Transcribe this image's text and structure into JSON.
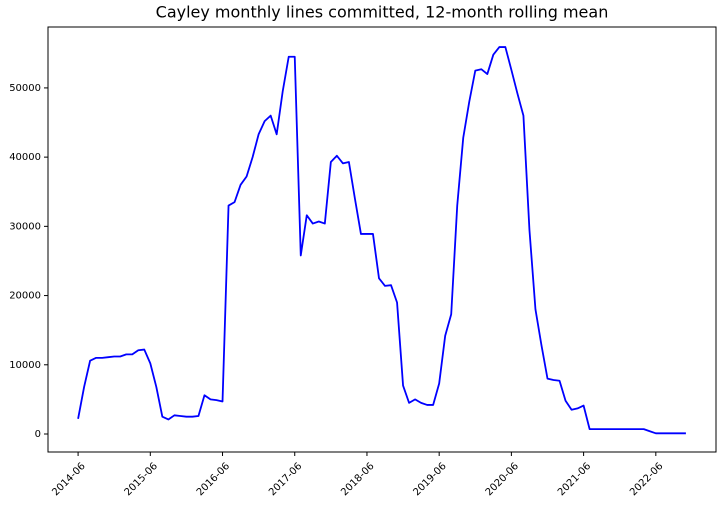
{
  "chart_data": {
    "type": "line",
    "title": "Cayley monthly lines committed, 12-month rolling mean",
    "x": [
      "2014-06",
      "2014-07",
      "2014-08",
      "2014-09",
      "2014-10",
      "2014-11",
      "2014-12",
      "2015-01",
      "2015-02",
      "2015-03",
      "2015-04",
      "2015-05",
      "2015-06",
      "2015-07",
      "2015-08",
      "2015-09",
      "2015-10",
      "2015-11",
      "2015-12",
      "2016-01",
      "2016-02",
      "2016-03",
      "2016-04",
      "2016-05",
      "2016-06",
      "2016-07",
      "2016-08",
      "2016-09",
      "2016-10",
      "2016-11",
      "2016-12",
      "2017-01",
      "2017-02",
      "2017-03",
      "2017-04",
      "2017-05",
      "2017-06",
      "2017-07",
      "2017-08",
      "2017-09",
      "2017-10",
      "2017-11",
      "2017-12",
      "2018-01",
      "2018-02",
      "2018-03",
      "2018-04",
      "2018-05",
      "2018-06",
      "2018-07",
      "2018-08",
      "2018-09",
      "2018-10",
      "2018-11",
      "2018-12",
      "2019-01",
      "2019-02",
      "2019-03",
      "2019-04",
      "2019-05",
      "2019-06",
      "2019-07",
      "2019-08",
      "2019-09",
      "2019-10",
      "2019-11",
      "2019-12",
      "2020-01",
      "2020-02",
      "2020-03",
      "2020-04",
      "2020-05",
      "2020-06",
      "2020-07",
      "2020-08",
      "2020-09",
      "2020-10",
      "2020-11",
      "2020-12",
      "2021-01",
      "2021-02",
      "2021-03",
      "2021-04",
      "2021-05",
      "2021-06",
      "2021-07",
      "2021-08",
      "2021-09",
      "2021-10",
      "2021-11",
      "2021-12",
      "2022-01",
      "2022-02",
      "2022-03",
      "2022-04",
      "2022-05",
      "2022-06",
      "2022-07",
      "2022-08",
      "2022-09",
      "2022-10",
      "2022-11"
    ],
    "series": [
      {
        "color": "#0000ff",
        "values": [
          2200,
          6800,
          10600,
          11000,
          11000,
          11100,
          11200,
          11200,
          11500,
          11500,
          12100,
          12200,
          10200,
          6800,
          2500,
          2100,
          2700,
          2600,
          2500,
          2500,
          2600,
          5600,
          5000,
          4900,
          4700,
          33000,
          33500,
          36000,
          37200,
          40000,
          43300,
          45200,
          46000,
          43300,
          49500,
          54500,
          54500,
          25800,
          31600,
          30400,
          30700,
          30400,
          39300,
          40200,
          39100,
          39300,
          34000,
          28900,
          28900,
          28900,
          22500,
          21400,
          21500,
          19000,
          7000,
          4500,
          5000,
          4500,
          4200,
          4200,
          7300,
          14200,
          17300,
          33000,
          42800,
          48000,
          52500,
          52700,
          52000,
          54800,
          55900,
          55900,
          52600,
          49200,
          46000,
          29500,
          18000,
          12800,
          8000,
          7800,
          7700,
          4800,
          3500,
          3700,
          4100,
          700,
          700,
          700,
          700,
          700,
          700,
          700,
          700,
          700,
          700,
          400,
          100,
          100,
          100,
          100,
          100,
          100
        ]
      }
    ],
    "xlim": [
      "2014-01",
      "2023-04"
    ],
    "xticks": [
      "2014-06",
      "2015-06",
      "2016-06",
      "2017-06",
      "2018-06",
      "2019-06",
      "2020-06",
      "2021-06",
      "2022-06"
    ],
    "ylim": [
      -2600,
      58800
    ],
    "yticks": [
      0,
      10000,
      20000,
      30000,
      40000,
      50000
    ],
    "grid": false
  }
}
